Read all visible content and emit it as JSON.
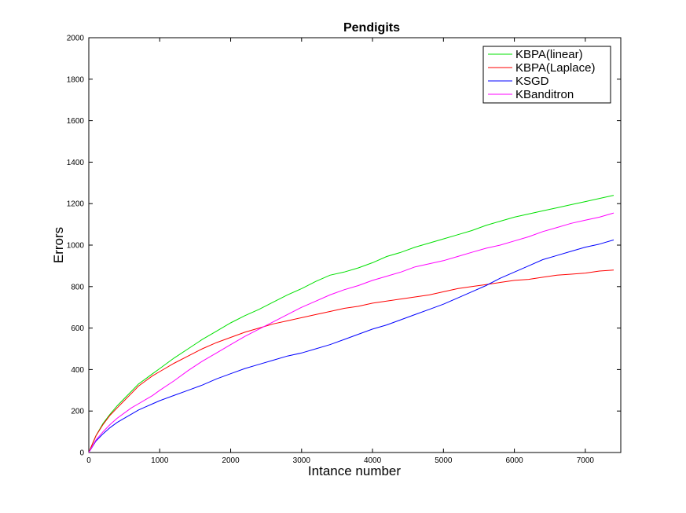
{
  "chart_data": {
    "type": "line",
    "title": "Pendigits",
    "xlabel": "Intance number",
    "ylabel": "Errors",
    "xlim": [
      0,
      7500
    ],
    "ylim": [
      0,
      2000
    ],
    "xticks": [
      0,
      1000,
      2000,
      3000,
      4000,
      5000,
      6000,
      7000
    ],
    "yticks": [
      0,
      200,
      400,
      600,
      800,
      1000,
      1200,
      1400,
      1600,
      1800,
      2000
    ],
    "grid": false,
    "legend_position": "top-right",
    "series": [
      {
        "name": "KBPA(linear)",
        "color": "#00e000",
        "x": [
          0,
          100,
          200,
          300,
          400,
          500,
          600,
          700,
          800,
          900,
          1000,
          1200,
          1400,
          1600,
          1800,
          2000,
          2200,
          2400,
          2600,
          2800,
          3000,
          3200,
          3400,
          3600,
          3800,
          4000,
          4200,
          4400,
          4600,
          4800,
          5000,
          5200,
          5400,
          5600,
          5800,
          6000,
          6200,
          6400,
          6600,
          6800,
          7000,
          7200,
          7400
        ],
        "values": [
          0,
          80,
          140,
          185,
          225,
          260,
          295,
          330,
          355,
          380,
          405,
          455,
          500,
          545,
          585,
          625,
          660,
          690,
          725,
          760,
          790,
          825,
          855,
          870,
          890,
          915,
          945,
          965,
          990,
          1010,
          1030,
          1050,
          1070,
          1095,
          1115,
          1135,
          1150,
          1165,
          1180,
          1195,
          1210,
          1225,
          1240
        ]
      },
      {
        "name": "KBPA(Laplace)",
        "color": "#ff0000",
        "x": [
          0,
          100,
          200,
          300,
          400,
          500,
          600,
          700,
          800,
          900,
          1000,
          1200,
          1400,
          1600,
          1800,
          2000,
          2200,
          2400,
          2600,
          2800,
          3000,
          3200,
          3400,
          3600,
          3800,
          4000,
          4200,
          4400,
          4600,
          4800,
          5000,
          5200,
          5400,
          5600,
          5800,
          6000,
          6200,
          6400,
          6600,
          6800,
          7000,
          7200,
          7400
        ],
        "values": [
          0,
          80,
          135,
          180,
          215,
          250,
          285,
          320,
          345,
          370,
          390,
          430,
          465,
          500,
          530,
          555,
          580,
          600,
          620,
          635,
          650,
          665,
          680,
          695,
          705,
          720,
          730,
          740,
          750,
          760,
          775,
          790,
          800,
          810,
          820,
          830,
          835,
          845,
          855,
          860,
          865,
          875,
          880
        ]
      },
      {
        "name": "KSGD",
        "color": "#0000ff",
        "x": [
          0,
          100,
          200,
          300,
          400,
          500,
          600,
          700,
          800,
          900,
          1000,
          1200,
          1400,
          1600,
          1800,
          2000,
          2200,
          2400,
          2600,
          2800,
          3000,
          3200,
          3400,
          3600,
          3800,
          4000,
          4200,
          4400,
          4600,
          4800,
          5000,
          5200,
          5400,
          5600,
          5800,
          6000,
          6200,
          6400,
          6600,
          6800,
          7000,
          7200,
          7400
        ],
        "values": [
          0,
          55,
          90,
          120,
          145,
          165,
          185,
          205,
          220,
          235,
          250,
          275,
          300,
          325,
          355,
          380,
          405,
          425,
          445,
          465,
          480,
          500,
          520,
          545,
          570,
          595,
          615,
          640,
          665,
          690,
          715,
          745,
          775,
          805,
          840,
          870,
          900,
          930,
          950,
          970,
          990,
          1005,
          1025
        ]
      },
      {
        "name": "KBanditron",
        "color": "#ff00ff",
        "x": [
          0,
          100,
          200,
          300,
          400,
          500,
          600,
          700,
          800,
          900,
          1000,
          1200,
          1400,
          1600,
          1800,
          2000,
          2200,
          2400,
          2600,
          2800,
          3000,
          3200,
          3400,
          3600,
          3800,
          4000,
          4200,
          4400,
          4600,
          4800,
          5000,
          5200,
          5400,
          5600,
          5800,
          6000,
          6200,
          6400,
          6600,
          6800,
          7000,
          7200,
          7400
        ],
        "values": [
          0,
          60,
          100,
          135,
          165,
          190,
          215,
          235,
          255,
          275,
          300,
          345,
          395,
          440,
          480,
          520,
          560,
          595,
          630,
          665,
          700,
          730,
          760,
          785,
          805,
          830,
          850,
          870,
          895,
          910,
          925,
          945,
          965,
          985,
          1000,
          1020,
          1040,
          1065,
          1085,
          1105,
          1120,
          1135,
          1155
        ]
      }
    ]
  }
}
